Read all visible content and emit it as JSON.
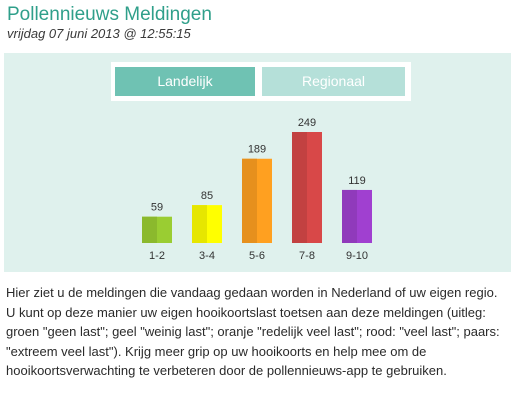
{
  "header": {
    "title": "Pollennieuws Meldingen",
    "timestamp": "vrijdag 07 juni 2013 @ 12:55:15"
  },
  "tabs": [
    {
      "label": "Landelijk",
      "active": true
    },
    {
      "label": "Regionaal",
      "active": false
    }
  ],
  "colors": {
    "panel_bg": "#dff1ed",
    "tab_active": "#6fc2b3",
    "tab_inactive": "#b5e0d9",
    "title": "#2f9f8a"
  },
  "chart_data": {
    "type": "bar",
    "title": "",
    "xlabel": "",
    "ylabel": "",
    "categories": [
      "1-2",
      "3-4",
      "5-6",
      "7-8",
      "9-10"
    ],
    "values": [
      59,
      85,
      189,
      249,
      119
    ],
    "colors": [
      "#9acd32",
      "#ffff00",
      "#ffa020",
      "#d84848",
      "#a040d0"
    ],
    "ylim": [
      0,
      249
    ],
    "grid": false,
    "legend": "none"
  },
  "description": "Hier ziet u de meldingen die vandaag gedaan worden in Nederland of uw eigen regio. U kunt op deze manier uw eigen hooikoortslast toetsen aan deze meldingen (uitleg: groen \"geen last\"; geel \"weinig last\"; oranje \"redelijk veel last\"; rood: \"veel last\"; paars: \"extreem veel last\"). Krijg meer grip op uw hooikoorts en help mee om de hooikoortsverwachting te verbeteren door de pollennieuws-app te gebruiken."
}
